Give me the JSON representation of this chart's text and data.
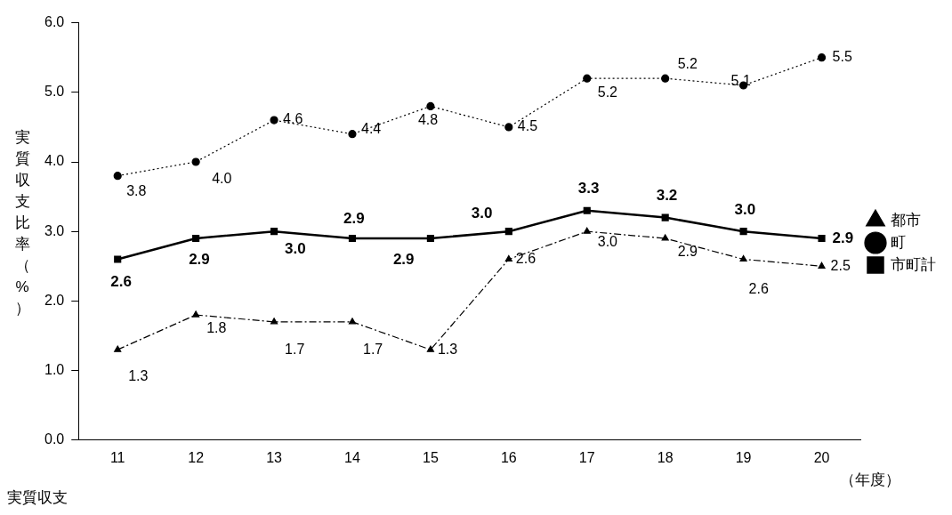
{
  "chart_data": {
    "type": "line",
    "categories": [
      "11",
      "12",
      "13",
      "14",
      "15",
      "16",
      "17",
      "18",
      "19",
      "20"
    ],
    "ylabel": "実質収支比率（%）",
    "xlabel": "（年度）",
    "annotations": [
      "実質収支"
    ],
    "ylim": [
      0,
      6
    ],
    "yticks": [
      {
        "value": 0,
        "label": "0.0"
      },
      {
        "value": 1,
        "label": "1.0"
      },
      {
        "value": 2,
        "label": "2.0"
      },
      {
        "value": 3,
        "label": "3.0"
      },
      {
        "value": 4,
        "label": "4.0"
      },
      {
        "value": 5,
        "label": "5.0"
      },
      {
        "value": 6,
        "label": "6.0"
      }
    ],
    "grid": false,
    "legend": "right",
    "series": [
      {
        "name": "都市",
        "color": "#000000",
        "marker": "triangle",
        "line_style": "dashed",
        "values": [
          1.3,
          1.8,
          1.7,
          1.7,
          1.3,
          2.6,
          3.0,
          2.9,
          2.6,
          2.5
        ],
        "value_labels": [
          "1.3",
          "1.8",
          "1.7",
          "1.7",
          "1.3",
          "2.6",
          "3.0",
          "2.9",
          "2.6",
          "2.5"
        ]
      },
      {
        "name": "町",
        "color": "#000000",
        "marker": "circle",
        "line_style": "dotted",
        "values": [
          3.8,
          4.0,
          4.6,
          4.4,
          4.8,
          4.5,
          5.2,
          5.2,
          5.1,
          5.5
        ],
        "value_labels": [
          "3.8",
          "4.0",
          "4.6",
          "4.4",
          "4.8",
          "4.5",
          "5.2",
          "5.2",
          "5.1",
          "5.5"
        ]
      },
      {
        "name": "市町計",
        "color": "#000000",
        "marker": "square",
        "line_style": "solid",
        "values": [
          2.6,
          2.9,
          3.0,
          2.9,
          2.9,
          3.0,
          3.3,
          3.2,
          3.0,
          2.9
        ],
        "value_labels": [
          "2.6",
          "2.9",
          "3.0",
          "2.9",
          "2.9",
          "3.0",
          "3.3",
          "3.2",
          "3.0",
          "2.9"
        ]
      }
    ]
  }
}
